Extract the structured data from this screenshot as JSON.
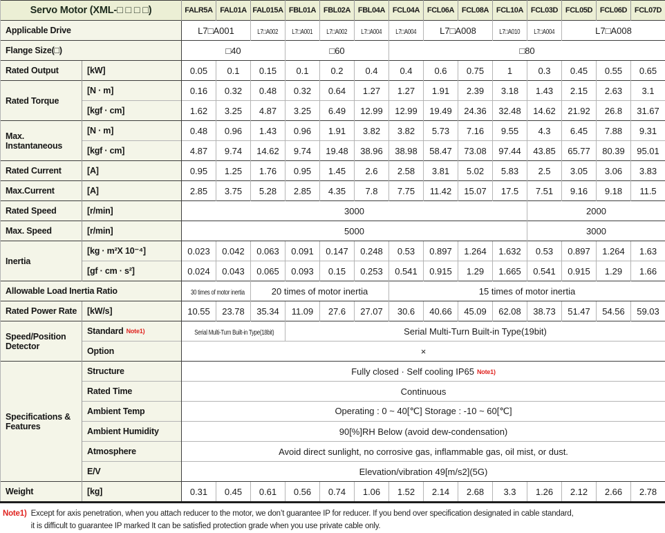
{
  "colors": {
    "header_bg": "#ecefd5",
    "label_bg": "#f4f5e8",
    "note_red": "#e02420",
    "border_dark": "#3c3c3c",
    "border_light": "#b4b4b4"
  },
  "header": {
    "title": "Servo Motor (XML-□ □ □ □)",
    "models": [
      "FALR5A",
      "FAL01A",
      "FAL015A",
      "FBL01A",
      "FBL02A",
      "FBL04A",
      "FCL04A",
      "FCL06A",
      "FCL08A",
      "FCL10A",
      "FCL03D",
      "FCL05D",
      "FCL06D",
      "FCL07D"
    ]
  },
  "rows": [
    {
      "sec": true,
      "label": {
        "text": "Applicable Drive",
        "cols": 2
      },
      "cells": [
        {
          "t": "L7□A001",
          "c": 2
        },
        {
          "t": "L7□A002",
          "s": 1
        },
        {
          "t": "L7□A001",
          "s": 1
        },
        {
          "t": "L7□A002",
          "s": 1
        },
        {
          "t": "L7□A004",
          "s": 1
        },
        {
          "t": "L7□A004",
          "s": 1
        },
        {
          "t": "L7□A008",
          "c": 2
        },
        {
          "t": "L7□A010",
          "s": 1
        },
        {
          "t": "L7□A004",
          "s": 1
        },
        {
          "t": "L7□A008",
          "c": 3
        }
      ]
    },
    {
      "sec": true,
      "label": {
        "text": "Flange Size(□)",
        "cols": 2
      },
      "cells": [
        {
          "t": "□40",
          "c": 3
        },
        {
          "t": "□60",
          "c": 3
        },
        {
          "t": "□80",
          "c": 8
        }
      ]
    },
    {
      "sec": true,
      "label": {
        "text": "Rated Output"
      },
      "sub": {
        "text": "[kW]"
      },
      "values": [
        "0.05",
        "0.1",
        "0.15",
        "0.1",
        "0.2",
        "0.4",
        "0.4",
        "0.6",
        "0.75",
        "1",
        "0.3",
        "0.45",
        "0.55",
        "0.65"
      ]
    },
    {
      "sec": true,
      "label": {
        "text": "Rated Torque",
        "rows": 2
      },
      "sub": {
        "text": "[N · m]"
      },
      "values": [
        "0.16",
        "0.32",
        "0.48",
        "0.32",
        "0.64",
        "1.27",
        "1.27",
        "1.91",
        "2.39",
        "3.18",
        "1.43",
        "2.15",
        "2.63",
        "3.1"
      ]
    },
    {
      "sub": {
        "text": "[kgf · cm]"
      },
      "values": [
        "1.62",
        "3.25",
        "4.87",
        "3.25",
        "6.49",
        "12.99",
        "12.99",
        "19.49",
        "24.36",
        "32.48",
        "14.62",
        "21.92",
        "26.8",
        "31.67"
      ]
    },
    {
      "sec": true,
      "label": {
        "text": "Max. Instantaneous",
        "rows": 2
      },
      "sub": {
        "text": "[N · m]"
      },
      "values": [
        "0.48",
        "0.96",
        "1.43",
        "0.96",
        "1.91",
        "3.82",
        "3.82",
        "5.73",
        "7.16",
        "9.55",
        "4.3",
        "6.45",
        "7.88",
        "9.31"
      ]
    },
    {
      "sub": {
        "text": "[kgf · cm]"
      },
      "values": [
        "4.87",
        "9.74",
        "14.62",
        "9.74",
        "19.48",
        "38.96",
        "38.98",
        "58.47",
        "73.08",
        "97.44",
        "43.85",
        "65.77",
        "80.39",
        "95.01"
      ]
    },
    {
      "sec": true,
      "label": {
        "text": "Rated Current"
      },
      "sub": {
        "text": "[A]"
      },
      "values": [
        "0.95",
        "1.25",
        "1.76",
        "0.95",
        "1.45",
        "2.6",
        "2.58",
        "3.81",
        "5.02",
        "5.83",
        "2.5",
        "3.05",
        "3.06",
        "3.83"
      ]
    },
    {
      "sec": true,
      "label": {
        "text": "Max.Current"
      },
      "sub": {
        "text": "[A]"
      },
      "values": [
        "2.85",
        "3.75",
        "5.28",
        "2.85",
        "4.35",
        "7.8",
        "7.75",
        "11.42",
        "15.07",
        "17.5",
        "7.51",
        "9.16",
        "9.18",
        "11.5"
      ]
    },
    {
      "sec": true,
      "label": {
        "text": "Rated Speed"
      },
      "sub": {
        "text": "[r/min]"
      },
      "cells": [
        {
          "t": "3000",
          "c": 10
        },
        {
          "t": "2000",
          "c": 4
        }
      ]
    },
    {
      "sec": true,
      "label": {
        "text": "Max. Speed"
      },
      "sub": {
        "text": "[r/min]"
      },
      "cells": [
        {
          "t": "5000",
          "c": 10
        },
        {
          "t": "3000",
          "c": 4
        }
      ]
    },
    {
      "sec": true,
      "label": {
        "text": "Inertia",
        "rows": 2
      },
      "sub": {
        "text": "[kg · m²X 10⁻⁴]"
      },
      "values": [
        "0.023",
        "0.042",
        "0.063",
        "0.091",
        "0.147",
        "0.248",
        "0.53",
        "0.897",
        "1.264",
        "1.632",
        "0.53",
        "0.897",
        "1.264",
        "1.63"
      ]
    },
    {
      "sub": {
        "text": "[gf · cm · s²]"
      },
      "values": [
        "0.024",
        "0.043",
        "0.065",
        "0.093",
        "0.15",
        "0.253",
        "0.541",
        "0.915",
        "1.29",
        "1.665",
        "0.541",
        "0.915",
        "1.29",
        "1.66"
      ]
    },
    {
      "sec": true,
      "label": {
        "text": "Allowable Load Inertia Ratio",
        "cols": 2
      },
      "cells": [
        {
          "t": "30 times of motor inertia",
          "c": 2,
          "s": 1
        },
        {
          "t": "20 times of motor inertia",
          "c": 4
        },
        {
          "t": "15 times of motor inertia",
          "c": 8
        }
      ]
    },
    {
      "sec": true,
      "label": {
        "text": "Rated Power Rate"
      },
      "sub": {
        "text": "[kW/s]"
      },
      "values": [
        "10.55",
        "23.78",
        "35.34",
        "11.09",
        "27.6",
        "27.07",
        "30.6",
        "40.66",
        "45.09",
        "62.08",
        "38.73",
        "51.47",
        "54.56",
        "59.03"
      ]
    },
    {
      "sec": true,
      "label": {
        "text": "Speed/Position Detector",
        "rows": 2
      },
      "sub": {
        "text": "Standard",
        "note": "Note1)"
      },
      "cells": [
        {
          "t": "Serial Multi-Turn Built-in Type(18bit)",
          "c": 3,
          "s": 1
        },
        {
          "t": "Serial Multi-Turn Built-in Type(19bit)",
          "c": 11
        }
      ]
    },
    {
      "sub": {
        "text": "Option"
      },
      "cells": [
        {
          "t": "×",
          "c": 14
        }
      ]
    },
    {
      "sec": true,
      "label": {
        "text": "Specifications & Features",
        "rows": 6
      },
      "sub": {
        "text": "Structure"
      },
      "cells": [
        {
          "t": "Fully closed · Self cooling IP65",
          "c": 14,
          "note": "Note1)"
        }
      ]
    },
    {
      "sub": {
        "text": "Rated Time"
      },
      "cells": [
        {
          "t": "Continuous",
          "c": 14
        }
      ]
    },
    {
      "sub": {
        "text": "Ambient Temp"
      },
      "cells": [
        {
          "t": "Operating : 0 ~ 40[℃] Storage : -10 ~ 60[℃]",
          "c": 14
        }
      ]
    },
    {
      "sub": {
        "text": "Ambient Humidity"
      },
      "cells": [
        {
          "t": "90[%]RH Below (avoid dew-condensation)",
          "c": 14
        }
      ]
    },
    {
      "sub": {
        "text": "Atmosphere"
      },
      "cells": [
        {
          "t": "Avoid direct sunlight, no corrosive gas, inflammable gas, oil mist, or dust.",
          "c": 14
        }
      ]
    },
    {
      "sub": {
        "text": "E/V"
      },
      "cells": [
        {
          "t": "Elevation/vibration 49[m/s2](5G)",
          "c": 14
        }
      ]
    },
    {
      "sec": true,
      "label": {
        "text": "Weight"
      },
      "sub": {
        "text": "[kg]"
      },
      "values": [
        "0.31",
        "0.45",
        "0.61",
        "0.56",
        "0.74",
        "1.06",
        "1.52",
        "2.14",
        "2.68",
        "3.3",
        "1.26",
        "2.12",
        "2.66",
        "2.78"
      ]
    }
  ],
  "footnote": {
    "marker": "Note1)",
    "line1": "Except for axis penetration, when you attach reducer to the motor, we don’t guarantee IP for reducer. If you bend over specification designated in cable standard,",
    "line2": "it is difficult to guarantee IP marked It can be satisfied protection grade when you use private cable only."
  }
}
